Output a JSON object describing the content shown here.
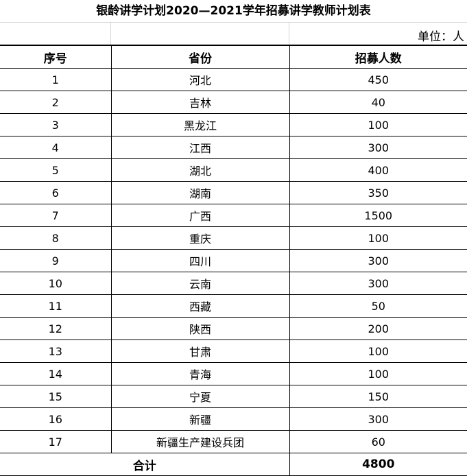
{
  "title": "银龄讲学计划2020—2021学年招募讲学教师计划表",
  "unit": "单位：人",
  "headers": [
    "序号",
    "省份",
    "招募人数"
  ],
  "rows": [
    [
      "1",
      "河北",
      "450"
    ],
    [
      "2",
      "吉林",
      "40"
    ],
    [
      "3",
      "黑龙江",
      "100"
    ],
    [
      "4",
      "江西",
      "300"
    ],
    [
      "5",
      "湖北",
      "400"
    ],
    [
      "6",
      "湖南",
      "350"
    ],
    [
      "7",
      "广西",
      "1500"
    ],
    [
      "8",
      "重庆",
      "100"
    ],
    [
      "9",
      "四川",
      "300"
    ],
    [
      "10",
      "云南",
      "300"
    ],
    [
      "11",
      "西藏",
      "50"
    ],
    [
      "12",
      "陕西",
      "200"
    ],
    [
      "13",
      "甘肃",
      "100"
    ],
    [
      "14",
      "青海",
      "100"
    ],
    [
      "15",
      "宁夏",
      "150"
    ],
    [
      "16",
      "新疆",
      "300"
    ],
    [
      "17",
      "新疆生产建设兵团",
      "60"
    ]
  ],
  "total": {
    "label": "合计",
    "value": "4800"
  }
}
